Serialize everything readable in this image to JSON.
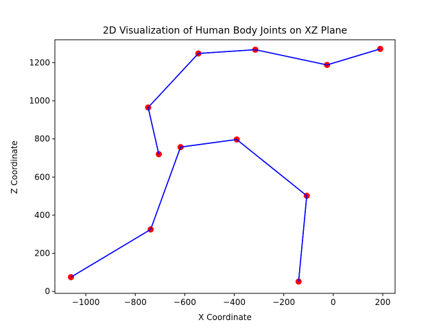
{
  "chart_data": {
    "type": "line",
    "title": "2D Visualization of Human Body Joints on XZ Plane",
    "xlabel": "X Coordinate",
    "ylabel": "Z Coordinate",
    "xlim": [
      -1125,
      250
    ],
    "ylim": [
      -10,
      1320
    ],
    "xticks": [
      -1000,
      -800,
      -600,
      -400,
      -200,
      0,
      200
    ],
    "xtick_labels": [
      "−1000",
      "−800",
      "−600",
      "−400",
      "−200",
      "0",
      "200"
    ],
    "yticks": [
      0,
      200,
      400,
      600,
      800,
      1000,
      1200
    ],
    "ytick_labels": [
      "0",
      "200",
      "400",
      "600",
      "800",
      "1000",
      "1200"
    ],
    "grid": false,
    "line_color": "#0000ff",
    "marker_color": "#ff0000",
    "segments": [
      {
        "points": [
          {
            "x": -705,
            "y": 720
          },
          {
            "x": -748,
            "y": 965
          },
          {
            "x": -545,
            "y": 1248
          },
          {
            "x": -315,
            "y": 1268
          },
          {
            "x": -25,
            "y": 1188
          },
          {
            "x": 190,
            "y": 1272
          }
        ]
      },
      {
        "points": [
          {
            "x": -1060,
            "y": 75
          },
          {
            "x": -738,
            "y": 325
          },
          {
            "x": -617,
            "y": 757
          },
          {
            "x": -390,
            "y": 797
          },
          {
            "x": -107,
            "y": 502
          },
          {
            "x": -140,
            "y": 52
          }
        ]
      }
    ]
  }
}
